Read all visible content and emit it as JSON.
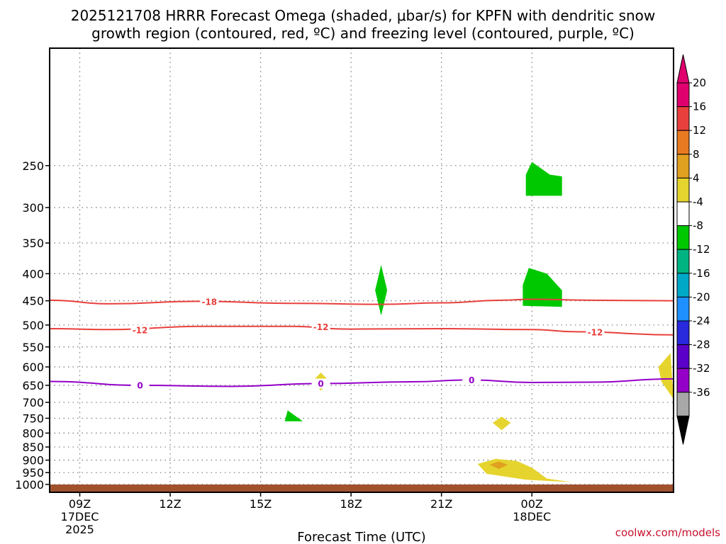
{
  "title": {
    "line1": "2025121708 HRRR Forecast Omega (shaded, μbar/s) for KPFN with dendritic snow",
    "line2": "growth region (contoured, red, ºC) and freezing level (contoured, purple, ºC)"
  },
  "credit": "coolwx.com/models",
  "colors": {
    "dgz_contour": "#e8403c",
    "freezing_contour": "#9400c8",
    "ground": "#a0522d",
    "grid": "#777777"
  },
  "chart_data": {
    "type": "heatmap",
    "xlabel": "Forecast Time (UTC)",
    "ylabel": "",
    "x_range_hours": [
      8,
      28.7
    ],
    "y_range_hpa": [
      1035,
      150
    ],
    "y_scale": "log-pressure",
    "grid": true,
    "x_ticks": [
      {
        "hour": 9,
        "label": "09Z",
        "sub1": "17DEC",
        "sub2": "2025"
      },
      {
        "hour": 12,
        "label": "12Z",
        "sub1": "",
        "sub2": ""
      },
      {
        "hour": 15,
        "label": "15Z",
        "sub1": "",
        "sub2": ""
      },
      {
        "hour": 18,
        "label": "18Z",
        "sub1": "",
        "sub2": ""
      },
      {
        "hour": 21,
        "label": "21Z",
        "sub1": "",
        "sub2": ""
      },
      {
        "hour": 24,
        "label": "00Z",
        "sub1": "18DEC",
        "sub2": ""
      }
    ],
    "y_ticks": [
      {
        "p": 250,
        "label": "250"
      },
      {
        "p": 300,
        "label": "300"
      },
      {
        "p": 350,
        "label": "350"
      },
      {
        "p": 400,
        "label": "400"
      },
      {
        "p": 450,
        "label": "450"
      },
      {
        "p": 500,
        "label": "500"
      },
      {
        "p": 550,
        "label": "550"
      },
      {
        "p": 600,
        "label": "600"
      },
      {
        "p": 650,
        "label": "650"
      },
      {
        "p": 700,
        "label": "700"
      },
      {
        "p": 750,
        "label": "750"
      },
      {
        "p": 800,
        "label": "800"
      },
      {
        "p": 850,
        "label": "850"
      },
      {
        "p": 900,
        "label": "900"
      },
      {
        "p": 950,
        "label": "950"
      },
      {
        "p": 1000,
        "label": "1000"
      }
    ],
    "contours": [
      {
        "name": "-18",
        "label": "-18",
        "color": "#e8403c",
        "points": [
          [
            8,
            449
          ],
          [
            10,
            456
          ],
          [
            13,
            451
          ],
          [
            16,
            455
          ],
          [
            19,
            457
          ],
          [
            21,
            454
          ],
          [
            23,
            449
          ],
          [
            24,
            447
          ],
          [
            26,
            449
          ],
          [
            28.7,
            450
          ]
        ],
        "labels": [
          [
            13.3,
            452
          ]
        ]
      },
      {
        "name": "-12",
        "label": "-12",
        "color": "#e8403c",
        "points": [
          [
            8,
            508
          ],
          [
            10,
            510
          ],
          [
            13,
            503
          ],
          [
            16,
            503
          ],
          [
            18,
            509
          ],
          [
            21,
            508
          ],
          [
            24,
            510
          ],
          [
            25.5,
            515
          ],
          [
            28.7,
            522
          ]
        ],
        "labels": [
          [
            11,
            511
          ],
          [
            17,
            504
          ],
          [
            26.1,
            516
          ]
        ]
      },
      {
        "name": "0",
        "label": "0",
        "color": "#9400c8",
        "points": [
          [
            8,
            639
          ],
          [
            11,
            650
          ],
          [
            14,
            653
          ],
          [
            17,
            645
          ],
          [
            20,
            640
          ],
          [
            22,
            635
          ],
          [
            24,
            642
          ],
          [
            26,
            641
          ],
          [
            28.7,
            632
          ]
        ],
        "labels": [
          [
            11,
            650
          ],
          [
            17,
            645
          ],
          [
            22,
            635
          ]
        ]
      }
    ],
    "shaded_regions": [
      {
        "value": -6,
        "color": "#00c800",
        "points": [
          [
            24,
            246
          ],
          [
            24.6,
            260
          ],
          [
            25,
            262
          ],
          [
            25,
            285
          ],
          [
            23.8,
            285
          ],
          [
            23.8,
            260
          ]
        ]
      },
      {
        "value": -6,
        "color": "#00c800",
        "points": [
          [
            23.9,
            390
          ],
          [
            24.5,
            400
          ],
          [
            25,
            430
          ],
          [
            25,
            462
          ],
          [
            23.7,
            460
          ],
          [
            23.7,
            420
          ]
        ]
      },
      {
        "value": -6,
        "color": "#00c800",
        "points": [
          [
            19,
            385
          ],
          [
            19.2,
            430
          ],
          [
            19,
            480
          ],
          [
            18.8,
            430
          ]
        ]
      },
      {
        "value": -6,
        "color": "#00c800",
        "points": [
          [
            15.9,
            725
          ],
          [
            16.4,
            760
          ],
          [
            15.8,
            760
          ]
        ]
      },
      {
        "value": 6,
        "color": "#e6d42e",
        "points": [
          [
            17,
            615
          ],
          [
            17.3,
            640
          ],
          [
            17,
            665
          ],
          [
            16.7,
            640
          ]
        ]
      },
      {
        "value": 6,
        "color": "#e6d42e",
        "points": [
          [
            23,
            745
          ],
          [
            23.3,
            765
          ],
          [
            23,
            790
          ],
          [
            22.7,
            765
          ]
        ]
      },
      {
        "value": 6,
        "color": "#e6d42e",
        "points": [
          [
            28.6,
            565
          ],
          [
            28.7,
            690
          ],
          [
            28.3,
            640
          ],
          [
            28.2,
            600
          ]
        ]
      },
      {
        "value": 6,
        "color": "#e6d42e",
        "points": [
          [
            22.8,
            895
          ],
          [
            23.5,
            903
          ],
          [
            24,
            930
          ],
          [
            24.5,
            975
          ],
          [
            25.3,
            990
          ],
          [
            23.8,
            980
          ],
          [
            22.5,
            955
          ],
          [
            22.2,
            915
          ]
        ]
      },
      {
        "value": 10,
        "color": "#e0a020",
        "points": [
          [
            22.9,
            905
          ],
          [
            23.2,
            918
          ],
          [
            22.9,
            935
          ],
          [
            22.6,
            918
          ]
        ]
      }
    ],
    "colorbar": {
      "title": "",
      "levels": [
        {
          "label": "20",
          "color": "#e0006e"
        },
        {
          "label": "16",
          "color": "#e8403c"
        },
        {
          "label": "12",
          "color": "#e87a22"
        },
        {
          "label": "8",
          "color": "#e0a020"
        },
        {
          "label": "4",
          "color": "#e6d42e"
        },
        {
          "label": "-4",
          "color": "#ffffff"
        },
        {
          "label": "-8",
          "color": "#00c800"
        },
        {
          "label": "-12",
          "color": "#00b482"
        },
        {
          "label": "-16",
          "color": "#00a8c8"
        },
        {
          "label": "-20",
          "color": "#1e90ff"
        },
        {
          "label": "-24",
          "color": "#2828dc"
        },
        {
          "label": "-28",
          "color": "#5a00c8"
        },
        {
          "label": "-32",
          "color": "#9400c8"
        },
        {
          "label": "-36",
          "color": "#a8a8a8"
        }
      ],
      "top_color": "#e0006e",
      "bottom_color": "#000000"
    }
  }
}
